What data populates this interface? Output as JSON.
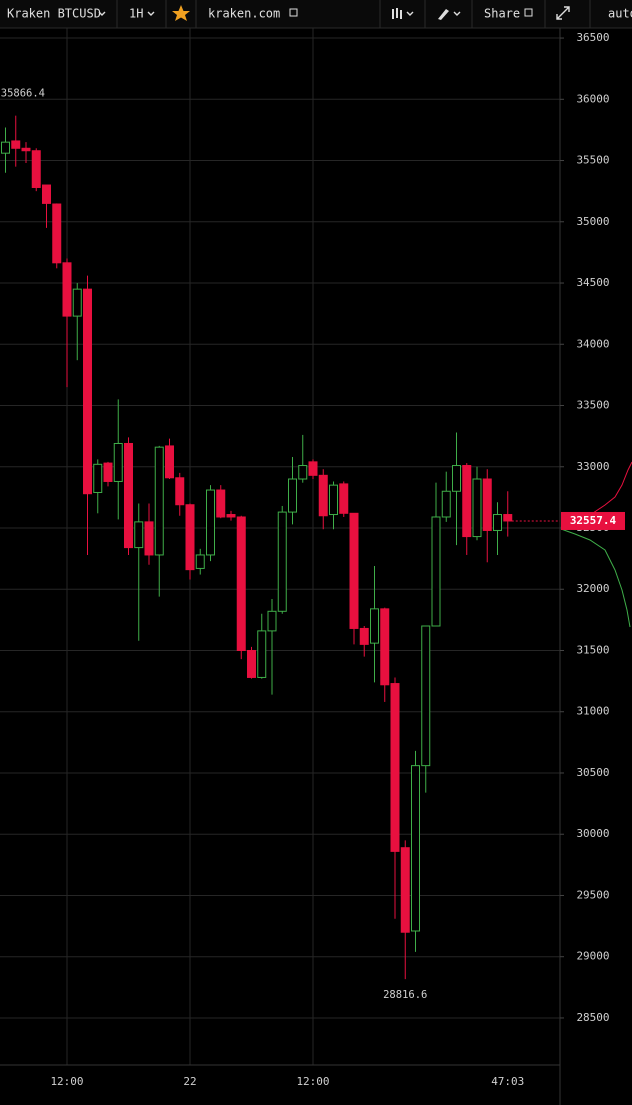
{
  "toolbar": {
    "symbol": "Kraken BTCUSD",
    "interval": "1H",
    "source": "kraken.com",
    "share": "Share",
    "scale_mode": "auto"
  },
  "chart_data": {
    "type": "candlestick",
    "categories": [
      null,
      null,
      null,
      null,
      null,
      null,
      "12:00",
      null,
      null,
      null,
      null,
      null,
      null,
      null,
      null,
      null,
      null,
      null,
      "22",
      null,
      null,
      null,
      null,
      null,
      null,
      null,
      null,
      null,
      null,
      null,
      "12:00",
      null,
      null,
      null,
      null,
      null,
      null,
      null,
      null,
      null,
      null,
      null,
      null,
      null,
      null,
      null,
      null,
      null,
      null,
      "47:03"
    ],
    "open": [
      35560,
      35660,
      35600,
      35580,
      35300,
      35145,
      34665,
      34230,
      34450,
      32790,
      33030,
      32880,
      33190,
      32340,
      32550,
      32280,
      33170,
      32910,
      32690,
      32170,
      32280,
      32810,
      32610,
      32590,
      31500,
      31280,
      31660,
      31820,
      32630,
      32900,
      33040,
      32930,
      32610,
      32860,
      32620,
      31680,
      31560,
      31840,
      31230,
      29890,
      29210,
      30560,
      31700,
      32590,
      32800,
      33010,
      32430,
      32900,
      32480,
      32610
    ],
    "high": [
      35770,
      35866.4,
      35650,
      35600,
      35300,
      35150,
      34700,
      34500,
      34560,
      33060,
      33040,
      33550,
      33240,
      32700,
      32700,
      33170,
      33230,
      32950,
      32700,
      32330,
      32850,
      32850,
      32640,
      32600,
      31530,
      31800,
      31920,
      32680,
      33080,
      33260,
      33060,
      32980,
      32880,
      32880,
      32620,
      31700,
      32190,
      31850,
      31280,
      29950,
      30680,
      31700,
      32870,
      32960,
      33280,
      33030,
      33000,
      32980,
      32710,
      32800
    ],
    "low": [
      35400,
      35450,
      35480,
      35250,
      34950,
      34620,
      33650,
      33870,
      32280,
      32620,
      32840,
      32570,
      32280,
      31580,
      32200,
      31940,
      32900,
      32600,
      32080,
      32120,
      32230,
      32580,
      32560,
      31430,
      31270,
      31270,
      31140,
      31800,
      32530,
      32870,
      32900,
      32490,
      32490,
      32590,
      31550,
      31450,
      31240,
      31080,
      29310,
      28816.6,
      29040,
      30340,
      31700,
      32550,
      32360,
      32280,
      32400,
      32220,
      32280,
      32430
    ],
    "close": [
      35650,
      35600,
      35580,
      35280,
      35150,
      34665,
      34230,
      34450,
      32780,
      33020,
      32880,
      33190,
      32340,
      32550,
      32280,
      33160,
      32910,
      32690,
      32160,
      32280,
      32810,
      32590,
      32590,
      31500,
      31280,
      31660,
      31820,
      32630,
      32900,
      33010,
      32930,
      32600,
      32850,
      32620,
      31680,
      31550,
      31840,
      31220,
      29860,
      29200,
      30560,
      31700,
      32590,
      32800,
      33010,
      32430,
      32900,
      32480,
      32610,
      32557.4
    ],
    "up_color": "#3fae49",
    "down_color": "#e8103f",
    "ylim": [
      28116,
      36582
    ],
    "yticks": [
      28500,
      29000,
      29500,
      30000,
      30500,
      31000,
      31500,
      32000,
      32500,
      33000,
      33500,
      34000,
      34500,
      35000,
      35500,
      36000,
      36500
    ],
    "grid": true
  }
}
